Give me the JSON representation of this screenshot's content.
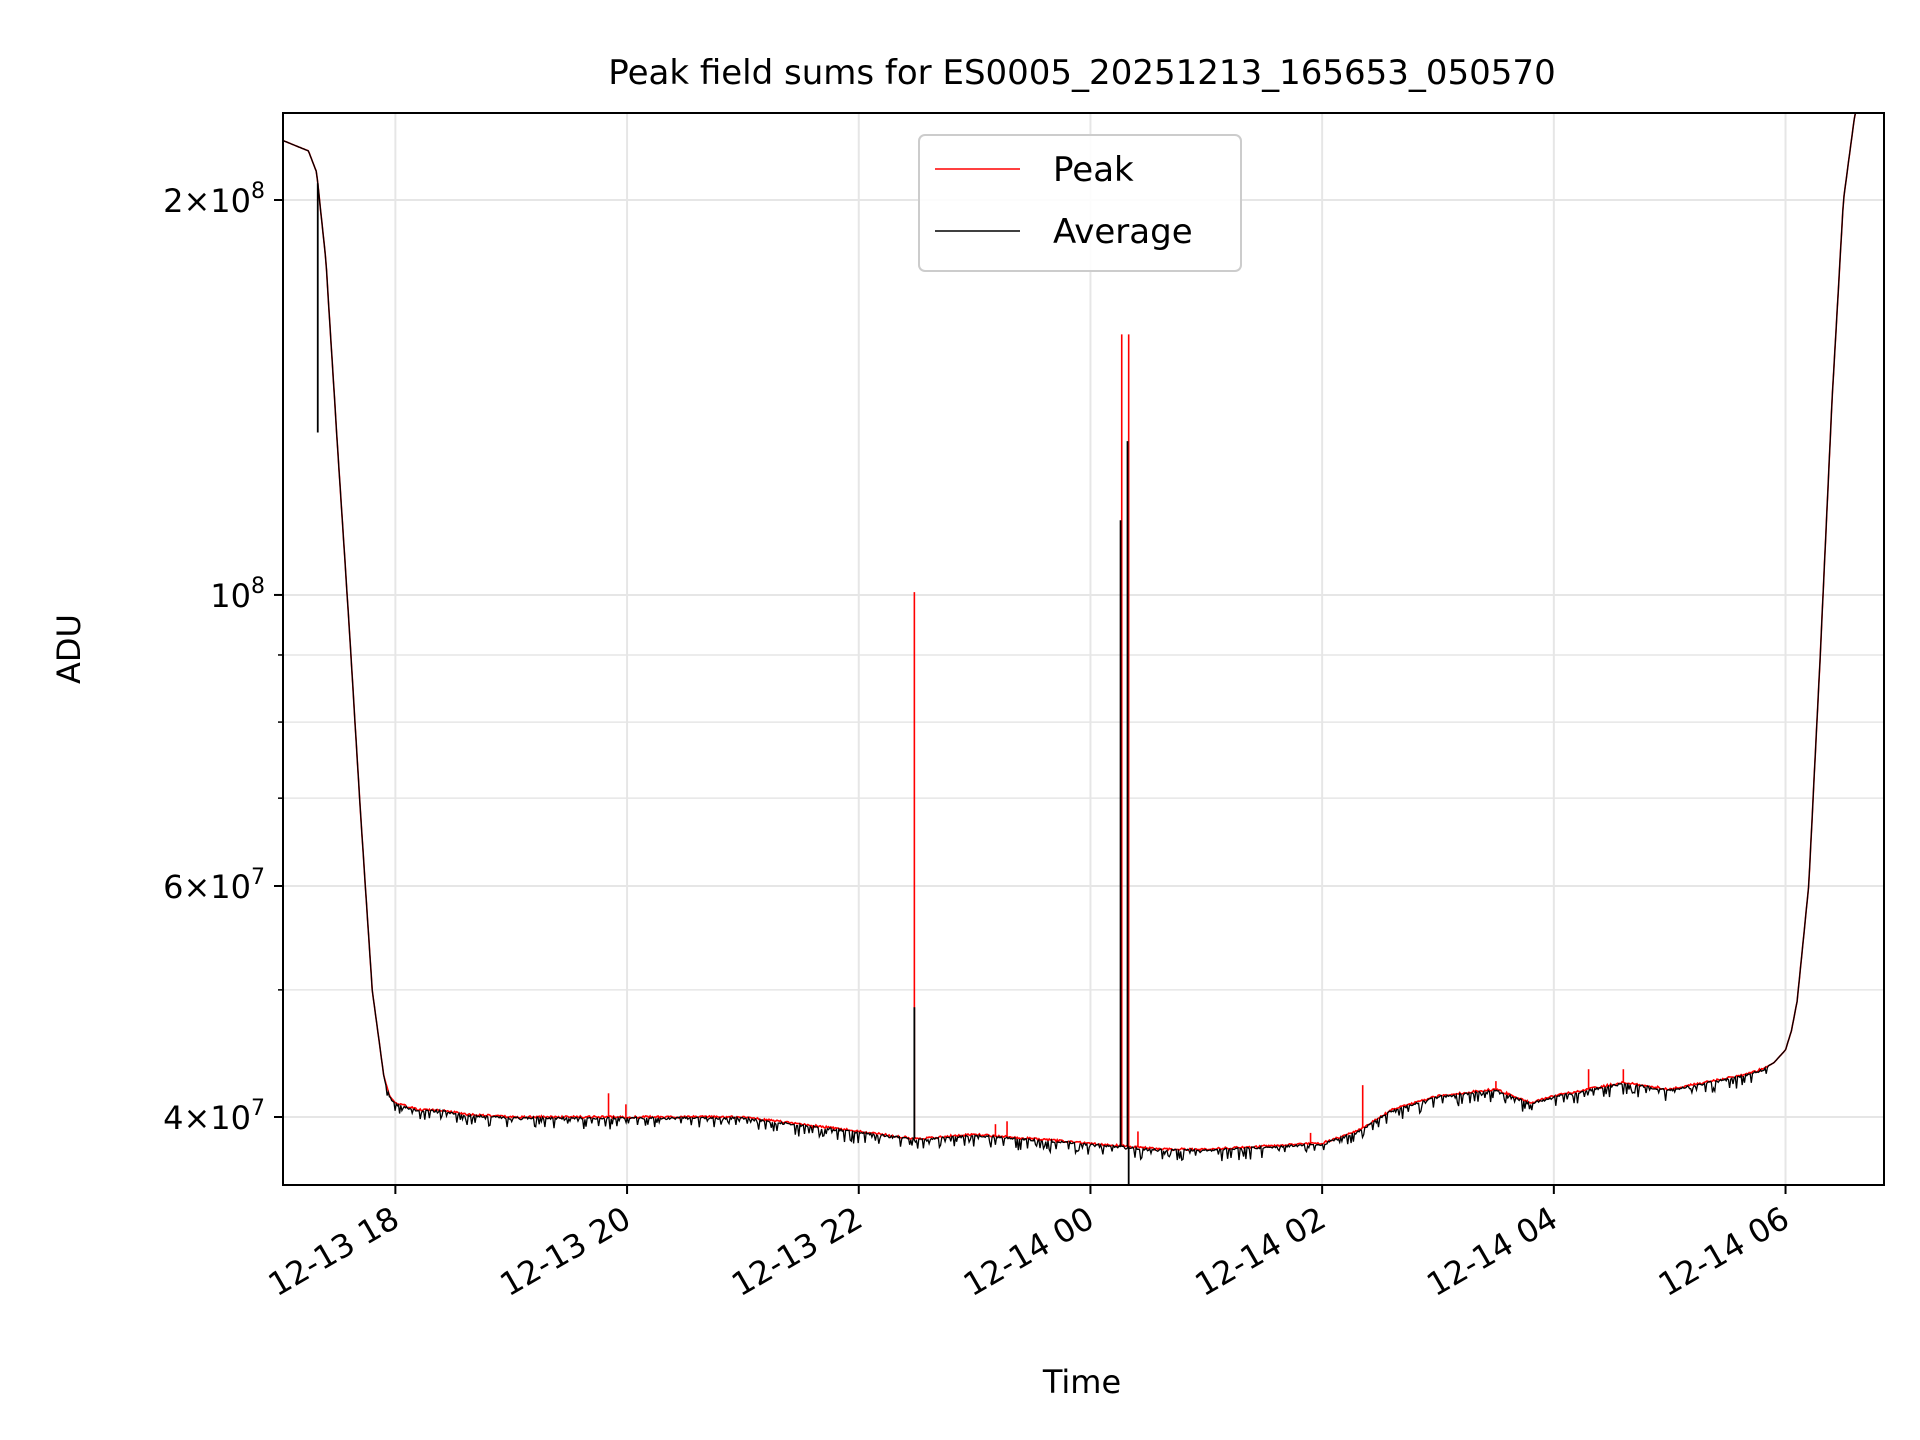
{
  "chart_data": {
    "type": "line",
    "title": "Peak field sums for ES0005_20251213_165653_050570",
    "xlabel": "Time",
    "ylabel": "ADU",
    "yscale": "log",
    "xlim_hours": [
      -0.97,
      12.85
    ],
    "ylim": [
      35500000,
      233000000
    ],
    "grid": true,
    "legend_position": "upper center",
    "x_ticks": [
      {
        "hour": 0,
        "label": "12-13 18"
      },
      {
        "hour": 2,
        "label": "12-13 20"
      },
      {
        "hour": 4,
        "label": "12-13 22"
      },
      {
        "hour": 6,
        "label": "12-14 00"
      },
      {
        "hour": 8,
        "label": "12-14 02"
      },
      {
        "hour": 10,
        "label": "12-14 04"
      },
      {
        "hour": 12,
        "label": "12-14 06"
      }
    ],
    "y_major_ticks": [
      {
        "value": 40000000,
        "base": "4",
        "exp": "7"
      },
      {
        "value": 60000000,
        "base": "6",
        "exp": "7"
      },
      {
        "value": 100000000,
        "base": "",
        "exp": "8"
      },
      {
        "value": 200000000,
        "base": "2",
        "exp": "8"
      }
    ],
    "y_minor_ticks": [
      50000000,
      70000000,
      80000000,
      90000000
    ],
    "base_series": {
      "x_hours": [
        -0.97,
        -0.75,
        -0.68,
        -0.6,
        -0.5,
        -0.4,
        -0.3,
        -0.2,
        -0.1,
        -0.05,
        0.0,
        0.2,
        0.4,
        0.6,
        1.0,
        1.5,
        2.0,
        2.5,
        3.0,
        3.5,
        4.0,
        4.5,
        5.0,
        5.5,
        6.0,
        6.3,
        6.6,
        7.0,
        7.5,
        8.0,
        8.3,
        8.6,
        9.0,
        9.5,
        9.8,
        10.0,
        10.3,
        10.6,
        11.0,
        11.3,
        11.6,
        11.8,
        11.9,
        12.0,
        12.05,
        12.1,
        12.2,
        12.3,
        12.4,
        12.5,
        12.6,
        12.85
      ],
      "values": [
        222000000,
        218000000,
        210000000,
        180000000,
        130000000,
        95000000,
        68000000,
        50000000,
        43000000,
        41500000,
        41000000,
        40500000,
        40500000,
        40200000,
        40000000,
        40000000,
        40000000,
        40000000,
        40000000,
        39500000,
        39000000,
        38500000,
        38800000,
        38500000,
        38200000,
        38000000,
        37800000,
        37800000,
        38000000,
        38200000,
        39000000,
        40500000,
        41500000,
        42000000,
        41000000,
        41500000,
        42000000,
        42500000,
        42000000,
        42500000,
        43000000,
        43500000,
        44000000,
        45000000,
        46500000,
        49000000,
        60000000,
        90000000,
        140000000,
        200000000,
        233000000,
        233000000
      ]
    },
    "series": [
      {
        "name": "Peak",
        "color": "#ff0000",
        "spikes": [
          {
            "hour": 4.48,
            "value": 100500000
          },
          {
            "hour": 6.27,
            "value": 158000000
          },
          {
            "hour": 6.33,
            "value": 158000000
          },
          {
            "hour": 1.84,
            "value": 41700000
          },
          {
            "hour": 1.99,
            "value": 40900000
          },
          {
            "hour": 5.18,
            "value": 39500000
          },
          {
            "hour": 5.28,
            "value": 39700000
          },
          {
            "hour": 6.41,
            "value": 39000000
          },
          {
            "hour": 8.35,
            "value": 42300000
          },
          {
            "hour": 10.3,
            "value": 43500000
          },
          {
            "hour": 10.6,
            "value": 43500000
          },
          {
            "hour": 3.6,
            "value": 39200000
          },
          {
            "hour": 7.9,
            "value": 38900000
          },
          {
            "hour": 9.5,
            "value": 42600000
          }
        ]
      },
      {
        "name": "Average",
        "color": "#000000",
        "spikes": [
          {
            "hour": 4.48,
            "value": 48500000
          },
          {
            "hour": 6.26,
            "value": 114000000
          },
          {
            "hour": 6.32,
            "value": 131000000
          },
          {
            "hour": 6.33,
            "value": 35500000
          },
          {
            "hour": -0.67,
            "value": 133000000
          }
        ]
      }
    ]
  }
}
